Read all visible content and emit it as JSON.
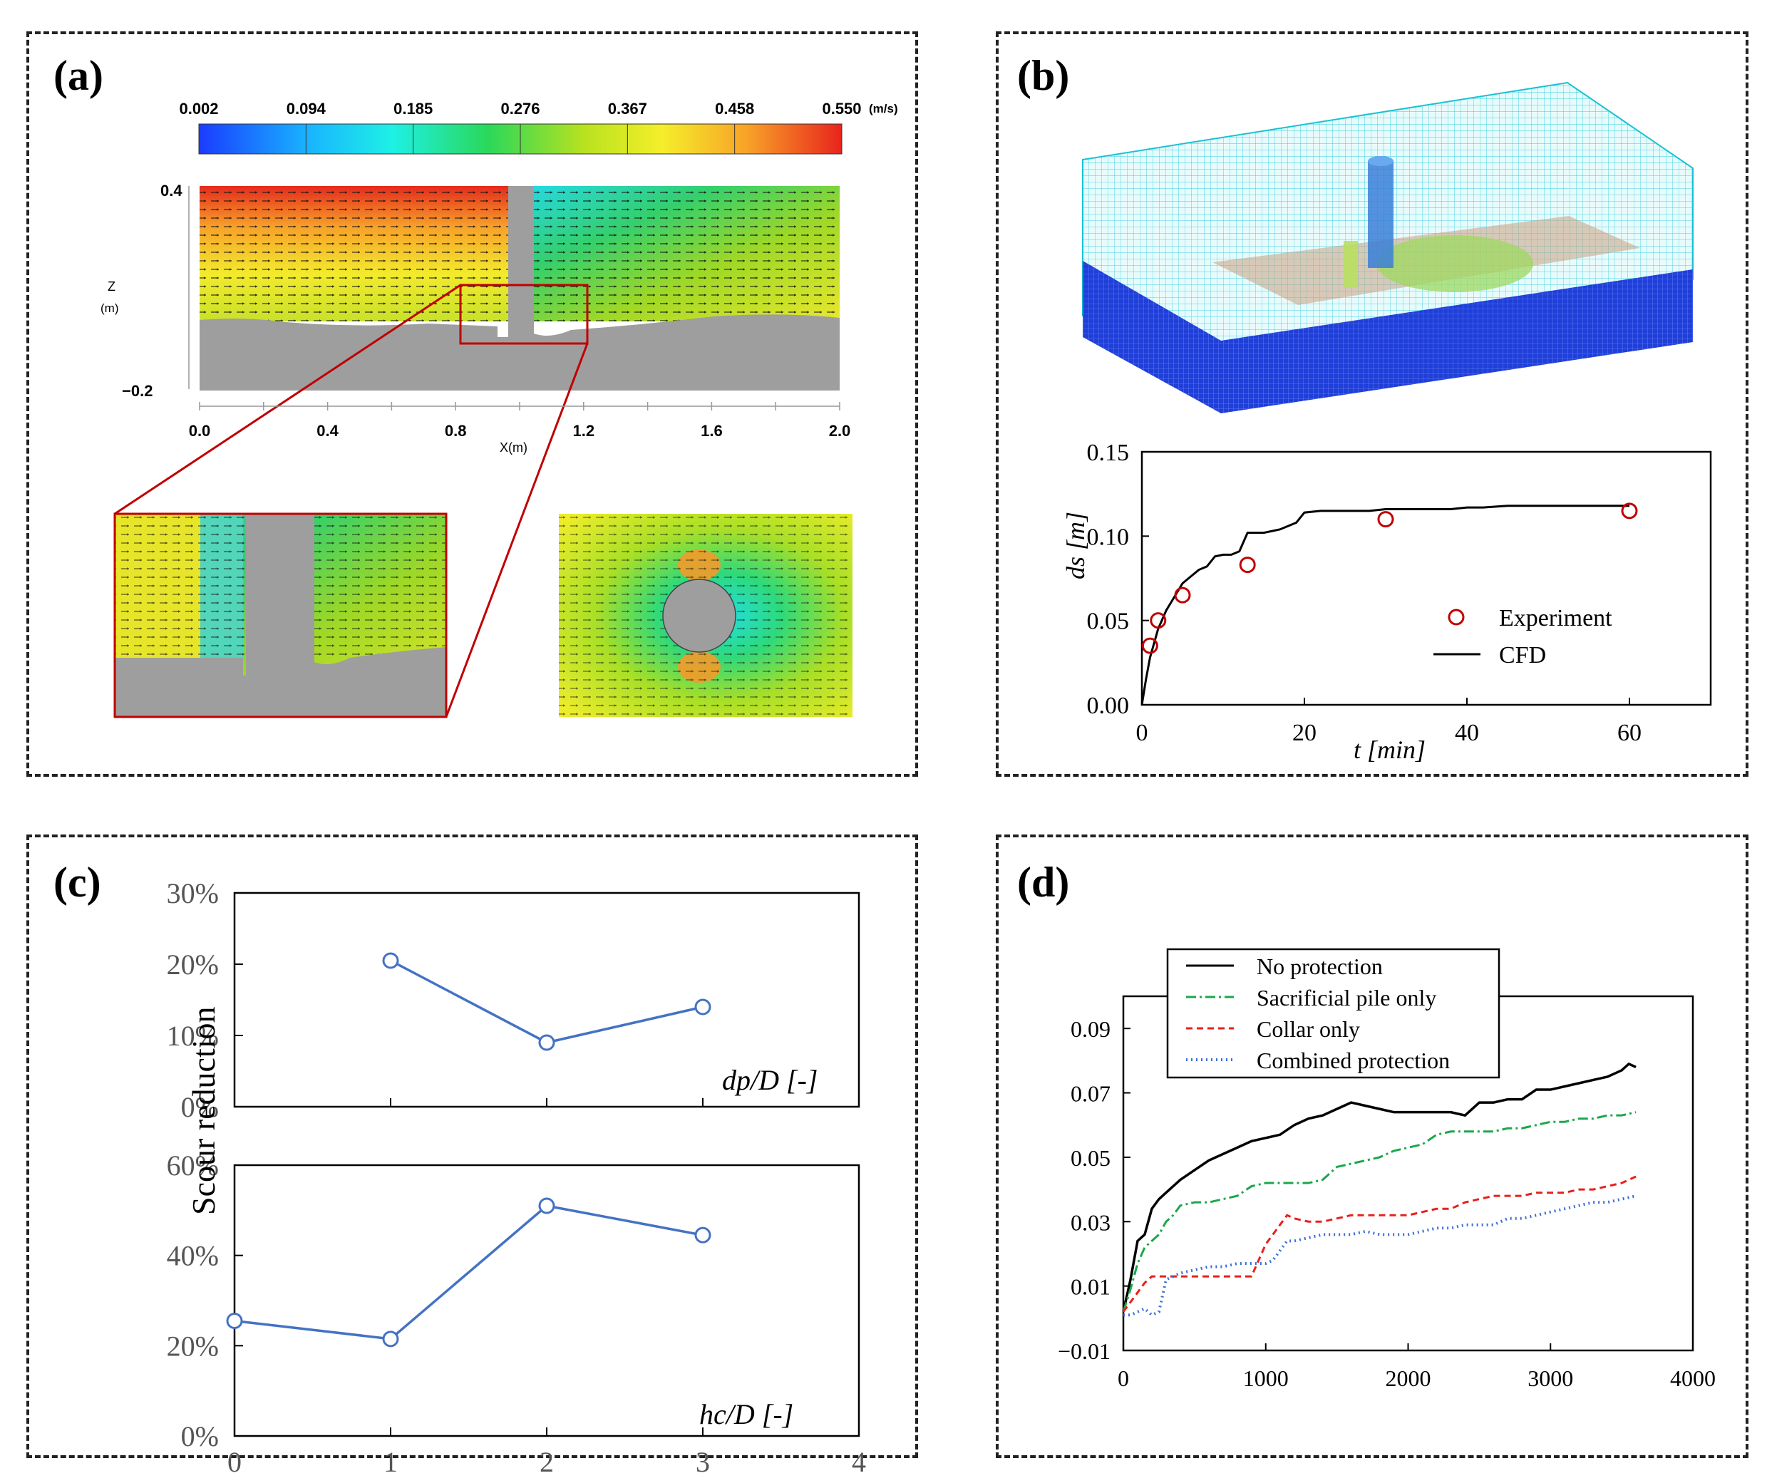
{
  "panel_labels": {
    "a": "(a)",
    "b": "(b)",
    "c": "(c)",
    "d": "(d)"
  },
  "colors": {
    "blue": "#4472c4",
    "red": "#c00000",
    "black": "#000000",
    "green": "#1aa84a",
    "dashred": "#e8201b",
    "dotblue": "#3b6fd6"
  },
  "chart_data": [
    {
      "id": "a",
      "type": "heatmap",
      "title": "",
      "colorbar": {
        "ticks": [
          "0.002",
          "0.094",
          "0.185",
          "0.276",
          "0.367",
          "0.458",
          "0.550"
        ],
        "unit": "(m/s)"
      },
      "xlabel": "X(m)",
      "ylabel": "Z",
      "ylabel_unit": "(m)",
      "xticks": [
        "0.0",
        "0.4",
        "0.8",
        "1.2",
        "1.6",
        "2.0"
      ],
      "yticks": [
        "0.4",
        "−0.2"
      ],
      "xlim": [
        0,
        2.0
      ],
      "ylim": [
        -0.2,
        0.4
      ]
    },
    {
      "id": "b",
      "type": "scatter",
      "xlabel": "t [min]",
      "ylabel": "ds [m]",
      "xlim": [
        0,
        70
      ],
      "ylim": [
        0,
        0.15
      ],
      "xticks": [
        "0",
        "20",
        "40",
        "60"
      ],
      "yticks": [
        "0.00",
        "0.05",
        "0.10",
        "0.15"
      ],
      "legend": [
        "Experiment",
        "CFD"
      ],
      "legend_position": "bottom-right",
      "series": [
        {
          "name": "Experiment",
          "style": "markers",
          "x": [
            1,
            2,
            5,
            13,
            30,
            60
          ],
          "y": [
            0.035,
            0.05,
            0.065,
            0.083,
            0.11,
            0.115
          ]
        },
        {
          "name": "CFD",
          "style": "line",
          "x": [
            0,
            0.5,
            1,
            2,
            3,
            4,
            5,
            6,
            7,
            8,
            9,
            10,
            11,
            12,
            13,
            14,
            15,
            16,
            17,
            18,
            19,
            20,
            22,
            25,
            28,
            30,
            35,
            38,
            40,
            42,
            45,
            50,
            55,
            60
          ],
          "y": [
            0,
            0.015,
            0.028,
            0.045,
            0.056,
            0.064,
            0.072,
            0.076,
            0.08,
            0.082,
            0.088,
            0.089,
            0.089,
            0.091,
            0.102,
            0.102,
            0.102,
            0.103,
            0.104,
            0.106,
            0.108,
            0.114,
            0.115,
            0.115,
            0.115,
            0.116,
            0.116,
            0.116,
            0.117,
            0.117,
            0.118,
            0.118,
            0.118,
            0.118
          ]
        }
      ]
    },
    {
      "id": "c-top",
      "type": "line",
      "ylabel": "Scour reduction",
      "annotation": "dp/D [-]",
      "xlim": [
        0,
        4
      ],
      "ylim": [
        0,
        30
      ],
      "yticks": [
        "0%",
        "10%",
        "20%",
        "30%"
      ],
      "series": [
        {
          "x": [
            1,
            2,
            3
          ],
          "y": [
            20.5,
            9,
            14
          ]
        }
      ]
    },
    {
      "id": "c-bottom",
      "type": "line",
      "annotation": "hc/D [-]",
      "xlim": [
        0,
        4
      ],
      "ylim": [
        0,
        60
      ],
      "xticks": [
        "0",
        "1",
        "2",
        "3",
        "4"
      ],
      "yticks": [
        "0%",
        "20%",
        "40%",
        "60%"
      ],
      "series": [
        {
          "x": [
            0,
            1,
            2,
            3
          ],
          "y": [
            25.5,
            21.5,
            51,
            44.5
          ]
        }
      ]
    },
    {
      "id": "d",
      "type": "line",
      "xlim": [
        0,
        4000
      ],
      "ylim": [
        -0.01,
        0.1
      ],
      "xticks": [
        "0",
        "1000",
        "2000",
        "3000",
        "4000"
      ],
      "yticks": [
        "−0.01",
        "0.01",
        "0.03",
        "0.05",
        "0.07",
        "0.09"
      ],
      "legend_position": "top-left",
      "series": [
        {
          "name": "No protection",
          "x": [
            0,
            50,
            100,
            150,
            200,
            250,
            300,
            350,
            400,
            500,
            600,
            700,
            800,
            900,
            1000,
            1100,
            1200,
            1300,
            1400,
            1500,
            1600,
            1700,
            1800,
            1900,
            2000,
            2100,
            2200,
            2300,
            2400,
            2500,
            2600,
            2700,
            2800,
            2900,
            3000,
            3100,
            3200,
            3300,
            3400,
            3500,
            3550,
            3600
          ],
          "y": [
            0.002,
            0.012,
            0.024,
            0.026,
            0.034,
            0.037,
            0.039,
            0.041,
            0.043,
            0.046,
            0.049,
            0.051,
            0.053,
            0.055,
            0.056,
            0.057,
            0.06,
            0.062,
            0.063,
            0.065,
            0.067,
            0.066,
            0.065,
            0.064,
            0.064,
            0.064,
            0.064,
            0.064,
            0.063,
            0.067,
            0.067,
            0.068,
            0.068,
            0.071,
            0.071,
            0.072,
            0.073,
            0.074,
            0.075,
            0.077,
            0.079,
            0.078
          ]
        },
        {
          "name": "Sacrificial pile only",
          "x": [
            0,
            50,
            100,
            150,
            200,
            250,
            300,
            350,
            400,
            500,
            600,
            700,
            800,
            900,
            1000,
            1100,
            1200,
            1300,
            1400,
            1500,
            1600,
            1700,
            1800,
            1900,
            2000,
            2100,
            2200,
            2300,
            2400,
            2500,
            2600,
            2700,
            2800,
            2900,
            3000,
            3100,
            3200,
            3300,
            3400,
            3500,
            3600
          ],
          "y": [
            0.002,
            0.009,
            0.017,
            0.022,
            0.024,
            0.026,
            0.03,
            0.032,
            0.035,
            0.036,
            0.036,
            0.037,
            0.038,
            0.041,
            0.042,
            0.042,
            0.042,
            0.042,
            0.043,
            0.047,
            0.048,
            0.049,
            0.05,
            0.052,
            0.053,
            0.054,
            0.057,
            0.058,
            0.058,
            0.058,
            0.058,
            0.059,
            0.059,
            0.06,
            0.061,
            0.061,
            0.062,
            0.062,
            0.063,
            0.063,
            0.064
          ]
        },
        {
          "name": "Collar only",
          "x": [
            0,
            50,
            100,
            150,
            200,
            250,
            300,
            400,
            500,
            600,
            700,
            800,
            900,
            1000,
            1050,
            1100,
            1150,
            1200,
            1300,
            1400,
            1500,
            1600,
            1700,
            1800,
            1900,
            2000,
            2100,
            2200,
            2300,
            2400,
            2500,
            2600,
            2700,
            2800,
            2900,
            3000,
            3100,
            3200,
            3300,
            3400,
            3500,
            3550,
            3600
          ],
          "y": [
            0.002,
            0.005,
            0.008,
            0.011,
            0.013,
            0.013,
            0.013,
            0.013,
            0.013,
            0.013,
            0.013,
            0.013,
            0.013,
            0.023,
            0.026,
            0.029,
            0.032,
            0.031,
            0.03,
            0.03,
            0.031,
            0.032,
            0.032,
            0.032,
            0.032,
            0.032,
            0.033,
            0.034,
            0.034,
            0.036,
            0.037,
            0.038,
            0.038,
            0.038,
            0.039,
            0.039,
            0.039,
            0.04,
            0.04,
            0.041,
            0.042,
            0.043,
            0.044
          ]
        },
        {
          "name": "Combined protection",
          "x": [
            0,
            50,
            100,
            150,
            200,
            250,
            300,
            400,
            500,
            600,
            700,
            800,
            900,
            1000,
            1050,
            1100,
            1150,
            1200,
            1300,
            1400,
            1500,
            1600,
            1700,
            1800,
            1900,
            2000,
            2100,
            2200,
            2300,
            2400,
            2500,
            2600,
            2700,
            2800,
            2900,
            3000,
            3100,
            3200,
            3300,
            3400,
            3500,
            3600
          ],
          "y": [
            0.001,
            0.001,
            0.002,
            0.003,
            0.001,
            0.002,
            0.012,
            0.014,
            0.015,
            0.016,
            0.016,
            0.017,
            0.017,
            0.017,
            0.018,
            0.021,
            0.024,
            0.024,
            0.025,
            0.026,
            0.026,
            0.026,
            0.027,
            0.026,
            0.026,
            0.026,
            0.027,
            0.028,
            0.028,
            0.029,
            0.029,
            0.029,
            0.031,
            0.031,
            0.032,
            0.033,
            0.034,
            0.035,
            0.036,
            0.036,
            0.037,
            0.038
          ]
        }
      ]
    }
  ]
}
